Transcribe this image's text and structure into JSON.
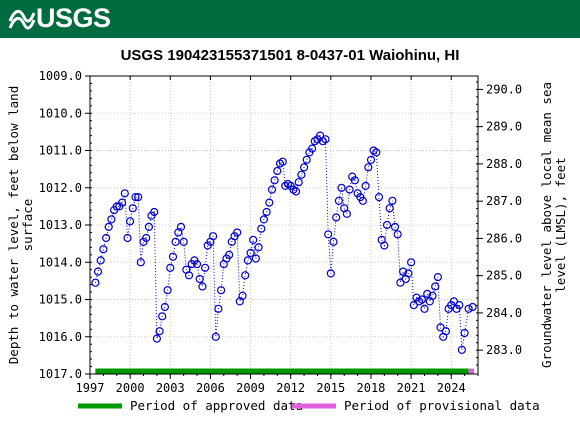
{
  "header": {
    "logo_text": "USGS"
  },
  "chart_data": {
    "type": "scatter",
    "title": "USGS 190423155371501 8-0437-01 Waiohinu, HI",
    "ylabel_left": "Depth to water level, feet below land surface",
    "ylabel_right": "Groundwater level above local mean sea level (LMSL), feet",
    "ylim_left": [
      1017.0,
      1009.0
    ],
    "ylim_right": [
      282.36,
      290.36
    ],
    "xlim": [
      1997.0,
      2026.0
    ],
    "x_ticks": [
      1997,
      2000,
      2003,
      2006,
      2009,
      2012,
      2015,
      2018,
      2021,
      2024
    ],
    "x_tick_labels": [
      "1997",
      "2000",
      "2003",
      "2006",
      "2009",
      "2012",
      "2015",
      "2018",
      "2021",
      "2024"
    ],
    "y_left_ticks": [
      1009.0,
      1010.0,
      1011.0,
      1012.0,
      1013.0,
      1014.0,
      1015.0,
      1016.0,
      1017.0
    ],
    "y_left_tick_labels": [
      "1009.0",
      "1010.0",
      "1011.0",
      "1012.0",
      "1013.0",
      "1014.0",
      "1015.0",
      "1016.0",
      "1017.0"
    ],
    "y_right_ticks": [
      290.0,
      289.0,
      288.0,
      287.0,
      286.0,
      285.0,
      284.0,
      283.0
    ],
    "y_right_tick_labels": [
      "290.0",
      "289.0",
      "288.0",
      "287.0",
      "286.0",
      "285.0",
      "284.0",
      "283.0"
    ],
    "grid": true,
    "legend": {
      "placement": "bottom",
      "entries": [
        {
          "label": "Period of approved data",
          "color": "#009900"
        },
        {
          "label": "Period of provisional data",
          "color": "#e060e0"
        }
      ]
    },
    "approved_period": [
      1997.4,
      2025.3
    ],
    "provisional_period": [
      2025.3,
      2025.7
    ],
    "series": [
      {
        "marker_color": "#0000cc",
        "line_style": "dotted",
        "points": [
          [
            1997.4,
            1014.55
          ],
          [
            1997.6,
            1014.25
          ],
          [
            1997.8,
            1013.95
          ],
          [
            1998.0,
            1013.65
          ],
          [
            1998.2,
            1013.35
          ],
          [
            1998.4,
            1013.05
          ],
          [
            1998.6,
            1012.85
          ],
          [
            1998.8,
            1012.6
          ],
          [
            1999.0,
            1012.5
          ],
          [
            1999.2,
            1012.5
          ],
          [
            1999.4,
            1012.4
          ],
          [
            1999.6,
            1012.15
          ],
          [
            1999.8,
            1013.35
          ],
          [
            2000.0,
            1012.9
          ],
          [
            2000.2,
            1012.55
          ],
          [
            2000.4,
            1012.25
          ],
          [
            2000.6,
            1012.25
          ],
          [
            2000.8,
            1014.0
          ],
          [
            2001.0,
            1013.45
          ],
          [
            2001.2,
            1013.35
          ],
          [
            2001.4,
            1013.05
          ],
          [
            2001.6,
            1012.75
          ],
          [
            2001.8,
            1012.65
          ],
          [
            2002.0,
            1016.05
          ],
          [
            2002.2,
            1015.85
          ],
          [
            2002.4,
            1015.45
          ],
          [
            2002.6,
            1015.2
          ],
          [
            2002.8,
            1014.75
          ],
          [
            2003.0,
            1014.15
          ],
          [
            2003.2,
            1013.85
          ],
          [
            2003.4,
            1013.45
          ],
          [
            2003.6,
            1013.2
          ],
          [
            2003.8,
            1013.05
          ],
          [
            2004.0,
            1013.45
          ],
          [
            2004.2,
            1014.2
          ],
          [
            2004.4,
            1014.35
          ],
          [
            2004.6,
            1014.05
          ],
          [
            2004.8,
            1013.95
          ],
          [
            2005.0,
            1014.05
          ],
          [
            2005.2,
            1014.45
          ],
          [
            2005.4,
            1014.65
          ],
          [
            2005.6,
            1014.15
          ],
          [
            2005.8,
            1013.55
          ],
          [
            2006.0,
            1013.45
          ],
          [
            2006.2,
            1013.3
          ],
          [
            2006.4,
            1016.0
          ],
          [
            2006.6,
            1015.25
          ],
          [
            2006.8,
            1014.75
          ],
          [
            2007.0,
            1014.05
          ],
          [
            2007.2,
            1013.9
          ],
          [
            2007.4,
            1013.8
          ],
          [
            2007.6,
            1013.45
          ],
          [
            2007.8,
            1013.3
          ],
          [
            2008.0,
            1013.2
          ],
          [
            2008.2,
            1015.05
          ],
          [
            2008.4,
            1014.9
          ],
          [
            2008.6,
            1014.35
          ],
          [
            2008.8,
            1013.95
          ],
          [
            2009.0,
            1013.75
          ],
          [
            2009.2,
            1013.4
          ],
          [
            2009.4,
            1013.9
          ],
          [
            2009.6,
            1013.6
          ],
          [
            2009.8,
            1013.1
          ],
          [
            2010.0,
            1012.85
          ],
          [
            2010.2,
            1012.65
          ],
          [
            2010.4,
            1012.4
          ],
          [
            2010.6,
            1012.05
          ],
          [
            2010.8,
            1011.8
          ],
          [
            2011.0,
            1011.55
          ],
          [
            2011.2,
            1011.35
          ],
          [
            2011.4,
            1011.3
          ],
          [
            2011.6,
            1011.95
          ],
          [
            2011.8,
            1011.9
          ],
          [
            2012.0,
            1011.95
          ],
          [
            2012.2,
            1012.05
          ],
          [
            2012.4,
            1012.1
          ],
          [
            2012.6,
            1011.85
          ],
          [
            2012.8,
            1011.65
          ],
          [
            2013.0,
            1011.45
          ],
          [
            2013.2,
            1011.25
          ],
          [
            2013.4,
            1011.05
          ],
          [
            2013.6,
            1010.95
          ],
          [
            2013.8,
            1010.75
          ],
          [
            2014.0,
            1010.7
          ],
          [
            2014.2,
            1010.6
          ],
          [
            2014.4,
            1010.75
          ],
          [
            2014.6,
            1010.7
          ],
          [
            2014.8,
            1013.25
          ],
          [
            2015.0,
            1014.3
          ],
          [
            2015.2,
            1013.45
          ],
          [
            2015.4,
            1012.8
          ],
          [
            2015.6,
            1012.35
          ],
          [
            2015.8,
            1012.0
          ],
          [
            2016.0,
            1012.55
          ],
          [
            2016.2,
            1012.7
          ],
          [
            2016.4,
            1012.05
          ],
          [
            2016.6,
            1011.7
          ],
          [
            2016.8,
            1011.8
          ],
          [
            2017.0,
            1012.15
          ],
          [
            2017.2,
            1012.25
          ],
          [
            2017.4,
            1012.35
          ],
          [
            2017.6,
            1011.95
          ],
          [
            2017.8,
            1011.45
          ],
          [
            2018.0,
            1011.25
          ],
          [
            2018.2,
            1011.0
          ],
          [
            2018.4,
            1011.05
          ],
          [
            2018.6,
            1012.25
          ],
          [
            2018.8,
            1013.4
          ],
          [
            2019.0,
            1013.55
          ],
          [
            2019.2,
            1013.0
          ],
          [
            2019.4,
            1012.55
          ],
          [
            2019.6,
            1012.35
          ],
          [
            2019.8,
            1013.05
          ],
          [
            2020.0,
            1013.25
          ],
          [
            2020.2,
            1014.55
          ],
          [
            2020.4,
            1014.25
          ],
          [
            2020.6,
            1014.45
          ],
          [
            2020.8,
            1014.3
          ],
          [
            2021.0,
            1014.0
          ],
          [
            2021.2,
            1015.15
          ],
          [
            2021.4,
            1014.95
          ],
          [
            2021.6,
            1015.05
          ],
          [
            2021.8,
            1015.0
          ],
          [
            2022.0,
            1015.25
          ],
          [
            2022.2,
            1014.85
          ],
          [
            2022.4,
            1015.05
          ],
          [
            2022.6,
            1014.9
          ],
          [
            2022.8,
            1014.65
          ],
          [
            2023.0,
            1014.4
          ],
          [
            2023.2,
            1015.75
          ],
          [
            2023.4,
            1016.0
          ],
          [
            2023.6,
            1015.85
          ],
          [
            2023.8,
            1015.25
          ],
          [
            2024.0,
            1015.15
          ],
          [
            2024.2,
            1015.05
          ],
          [
            2024.4,
            1015.25
          ],
          [
            2024.6,
            1015.15
          ],
          [
            2024.8,
            1016.35
          ],
          [
            2025.0,
            1015.9
          ],
          [
            2025.3,
            1015.25
          ],
          [
            2025.6,
            1015.2
          ]
        ]
      }
    ]
  }
}
